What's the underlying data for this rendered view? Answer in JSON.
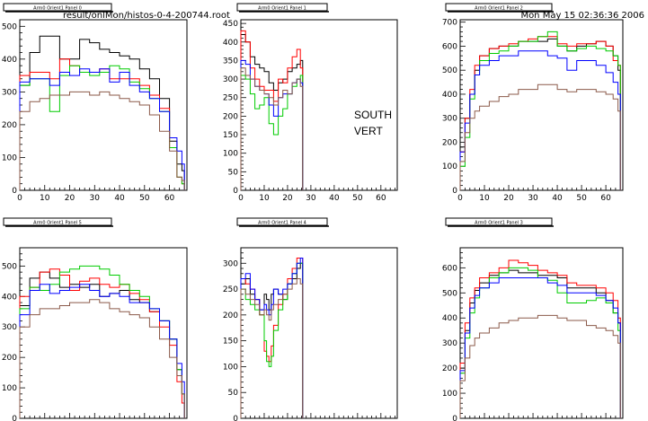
{
  "header": {
    "file": "result/onlMon/histos-0-4-200744.root",
    "date": "Mon May 15 02:36:36 2006"
  },
  "annotation": {
    "line1": "SOUTH",
    "line2": "VERT"
  },
  "colors": {
    "c1": "#000000",
    "c2": "#ff0000",
    "c3": "#00cc00",
    "c4": "#0000ff",
    "c5": "#8b5a4a"
  },
  "chart_data": [
    {
      "title": "Arm0 Orient1 Panel 0",
      "type": "line",
      "xlim": [
        0,
        67
      ],
      "ylim": [
        0,
        520
      ],
      "xticks": [
        0,
        10,
        20,
        30,
        40,
        50,
        60
      ],
      "yticks": [
        0,
        100,
        200,
        300,
        400,
        500
      ],
      "grid": false,
      "x": [
        0,
        4,
        8,
        12,
        16,
        20,
        24,
        28,
        32,
        36,
        40,
        44,
        48,
        52,
        56,
        60,
        63,
        65
      ],
      "series": [
        {
          "color": "c1",
          "values": [
            320,
            420,
            470,
            470,
            400,
            400,
            460,
            450,
            430,
            420,
            410,
            400,
            370,
            340,
            280,
            150,
            80,
            60
          ]
        },
        {
          "color": "c2",
          "values": [
            350,
            360,
            360,
            340,
            400,
            380,
            360,
            360,
            370,
            340,
            340,
            340,
            320,
            290,
            250,
            130,
            40,
            20
          ]
        },
        {
          "color": "c3",
          "values": [
            320,
            340,
            340,
            240,
            350,
            380,
            360,
            350,
            360,
            380,
            370,
            330,
            310,
            280,
            240,
            130,
            40,
            20
          ]
        },
        {
          "color": "c4",
          "values": [
            330,
            340,
            340,
            320,
            360,
            350,
            370,
            360,
            370,
            330,
            360,
            320,
            300,
            280,
            240,
            160,
            120,
            80
          ]
        },
        {
          "color": "c5",
          "values": [
            240,
            270,
            280,
            290,
            290,
            300,
            300,
            290,
            300,
            290,
            280,
            270,
            260,
            230,
            180,
            120,
            40,
            30
          ]
        }
      ]
    },
    {
      "title": "Arm0 Orient1 Panel 1",
      "type": "line",
      "xlim": [
        0,
        67
      ],
      "ylim": [
        0,
        460
      ],
      "xticks": [
        0,
        10,
        20,
        30,
        40,
        50,
        60
      ],
      "yticks": [
        0,
        50,
        100,
        150,
        200,
        250,
        300,
        350,
        400,
        450
      ],
      "grid": false,
      "x": [
        0,
        2,
        4,
        6,
        8,
        10,
        12,
        14,
        16,
        18,
        20,
        22,
        24,
        25.5
      ],
      "series": [
        {
          "color": "c1",
          "values": [
            420,
            400,
            360,
            340,
            330,
            320,
            290,
            270,
            290,
            300,
            320,
            330,
            340,
            350
          ]
        },
        {
          "color": "c2",
          "values": [
            430,
            400,
            330,
            300,
            280,
            270,
            270,
            240,
            300,
            290,
            330,
            360,
            380,
            330
          ]
        },
        {
          "color": "c3",
          "values": [
            310,
            300,
            260,
            220,
            230,
            250,
            180,
            150,
            200,
            220,
            260,
            280,
            300,
            310
          ]
        },
        {
          "color": "c4",
          "values": [
            350,
            340,
            300,
            280,
            270,
            260,
            230,
            200,
            250,
            260,
            260,
            290,
            300,
            290
          ]
        },
        {
          "color": "c5",
          "values": [
            330,
            310,
            300,
            280,
            270,
            260,
            250,
            230,
            250,
            270,
            260,
            290,
            300,
            280
          ]
        }
      ]
    },
    {
      "title": "Arm0 Orient1 Panel 2",
      "type": "line",
      "xlim": [
        0,
        67
      ],
      "ylim": [
        0,
        710
      ],
      "xticks": [
        0,
        10,
        20,
        30,
        40,
        50,
        60
      ],
      "yticks": [
        0,
        100,
        200,
        300,
        400,
        500,
        600,
        700
      ],
      "grid": false,
      "x": [
        0,
        2,
        4,
        6,
        8,
        12,
        16,
        20,
        24,
        28,
        32,
        36,
        40,
        44,
        48,
        52,
        56,
        60,
        63,
        65
      ],
      "series": [
        {
          "color": "c1",
          "values": [
            180,
            300,
            400,
            500,
            560,
            590,
            600,
            600,
            620,
            620,
            620,
            630,
            600,
            580,
            600,
            610,
            620,
            600,
            560,
            500
          ]
        },
        {
          "color": "c2",
          "values": [
            160,
            300,
            420,
            520,
            560,
            590,
            600,
            610,
            620,
            630,
            640,
            640,
            610,
            600,
            610,
            610,
            620,
            600,
            540,
            520
          ]
        },
        {
          "color": "c3",
          "values": [
            100,
            220,
            380,
            480,
            540,
            570,
            580,
            600,
            620,
            620,
            640,
            660,
            600,
            580,
            590,
            600,
            590,
            580,
            560,
            520
          ]
        },
        {
          "color": "c4",
          "values": [
            160,
            280,
            400,
            480,
            520,
            540,
            560,
            560,
            580,
            580,
            580,
            560,
            550,
            500,
            540,
            540,
            520,
            490,
            450,
            400
          ]
        },
        {
          "color": "c5",
          "values": [
            120,
            240,
            300,
            330,
            350,
            370,
            390,
            400,
            420,
            420,
            440,
            440,
            420,
            410,
            420,
            420,
            410,
            400,
            380,
            330
          ]
        }
      ]
    },
    {
      "title": "Arm0 Orient1 Panel 5",
      "type": "line",
      "xlim": [
        0,
        67
      ],
      "ylim": [
        0,
        560
      ],
      "xticks": [
        0,
        10,
        20,
        30,
        40,
        50,
        60
      ],
      "yticks": [
        0,
        100,
        200,
        300,
        400,
        500
      ],
      "grid": false,
      "x": [
        0,
        4,
        8,
        12,
        16,
        20,
        24,
        28,
        32,
        36,
        40,
        44,
        48,
        52,
        56,
        60,
        63,
        65
      ],
      "series": [
        {
          "color": "c1",
          "values": [
            370,
            460,
            480,
            460,
            430,
            440,
            430,
            440,
            400,
            410,
            420,
            390,
            380,
            350,
            320,
            260,
            160,
            80
          ]
        },
        {
          "color": "c2",
          "values": [
            400,
            430,
            480,
            490,
            470,
            420,
            450,
            460,
            440,
            430,
            440,
            410,
            390,
            350,
            300,
            240,
            120,
            50
          ]
        },
        {
          "color": "c3",
          "values": [
            360,
            430,
            420,
            440,
            480,
            490,
            500,
            500,
            490,
            470,
            440,
            420,
            400,
            360,
            320,
            260,
            160,
            80
          ]
        },
        {
          "color": "c4",
          "values": [
            340,
            420,
            440,
            410,
            420,
            430,
            440,
            420,
            400,
            410,
            400,
            380,
            380,
            360,
            320,
            260,
            180,
            120
          ]
        },
        {
          "color": "c5",
          "values": [
            300,
            340,
            360,
            360,
            370,
            380,
            380,
            390,
            380,
            360,
            350,
            340,
            330,
            300,
            260,
            200,
            140,
            80
          ]
        }
      ]
    },
    {
      "title": "Arm0 Orient1 Panel 4",
      "type": "line",
      "xlim": [
        0,
        67
      ],
      "ylim": [
        0,
        330
      ],
      "xticks": [
        0,
        10,
        20,
        30,
        40,
        50,
        60
      ],
      "yticks": [
        0,
        50,
        100,
        150,
        200,
        250,
        300
      ],
      "grid": false,
      "x": [
        0,
        2,
        4,
        6,
        8,
        10,
        11,
        12,
        13,
        14,
        16,
        18,
        20,
        22,
        24,
        25.5
      ],
      "series": [
        {
          "color": "c1",
          "values": [
            260,
            270,
            240,
            230,
            210,
            240,
            230,
            210,
            240,
            250,
            240,
            230,
            260,
            270,
            290,
            300
          ]
        },
        {
          "color": "c2",
          "values": [
            270,
            260,
            250,
            230,
            200,
            130,
            120,
            110,
            140,
            180,
            220,
            240,
            270,
            290,
            310,
            310
          ]
        },
        {
          "color": "c3",
          "values": [
            250,
            230,
            220,
            210,
            200,
            150,
            110,
            100,
            120,
            170,
            210,
            230,
            260,
            280,
            300,
            300
          ]
        },
        {
          "color": "c4",
          "values": [
            270,
            280,
            250,
            230,
            210,
            220,
            210,
            200,
            220,
            250,
            240,
            250,
            260,
            280,
            300,
            310
          ]
        },
        {
          "color": "c5",
          "values": [
            250,
            240,
            230,
            220,
            200,
            210,
            200,
            190,
            210,
            220,
            230,
            240,
            250,
            260,
            270,
            260
          ]
        }
      ]
    },
    {
      "title": "Arm0 Orient1 Panel 3",
      "type": "line",
      "xlim": [
        0,
        67
      ],
      "ylim": [
        0,
        680
      ],
      "xticks": [
        0,
        10,
        20,
        30,
        40,
        50,
        60
      ],
      "yticks": [
        0,
        100,
        200,
        300,
        400,
        500,
        600
      ],
      "grid": false,
      "x": [
        0,
        2,
        4,
        6,
        8,
        12,
        16,
        20,
        24,
        28,
        32,
        36,
        40,
        44,
        48,
        52,
        56,
        60,
        63,
        65
      ],
      "series": [
        {
          "color": "c1",
          "values": [
            200,
            350,
            460,
            510,
            540,
            570,
            580,
            590,
            580,
            580,
            570,
            570,
            560,
            520,
            520,
            520,
            500,
            470,
            420,
            380
          ]
        },
        {
          "color": "c2",
          "values": [
            220,
            380,
            480,
            520,
            560,
            580,
            600,
            630,
            620,
            610,
            590,
            580,
            570,
            540,
            530,
            530,
            520,
            500,
            470,
            400
          ]
        },
        {
          "color": "c3",
          "values": [
            180,
            320,
            420,
            480,
            520,
            560,
            580,
            600,
            600,
            590,
            560,
            550,
            500,
            460,
            460,
            470,
            480,
            460,
            420,
            350
          ]
        },
        {
          "color": "c4",
          "values": [
            190,
            340,
            440,
            490,
            520,
            540,
            560,
            560,
            560,
            560,
            560,
            540,
            530,
            500,
            500,
            500,
            490,
            470,
            440,
            380
          ]
        },
        {
          "color": "c5",
          "values": [
            150,
            240,
            290,
            320,
            340,
            360,
            380,
            390,
            400,
            400,
            410,
            410,
            400,
            390,
            390,
            370,
            360,
            350,
            330,
            300
          ]
        }
      ]
    }
  ]
}
